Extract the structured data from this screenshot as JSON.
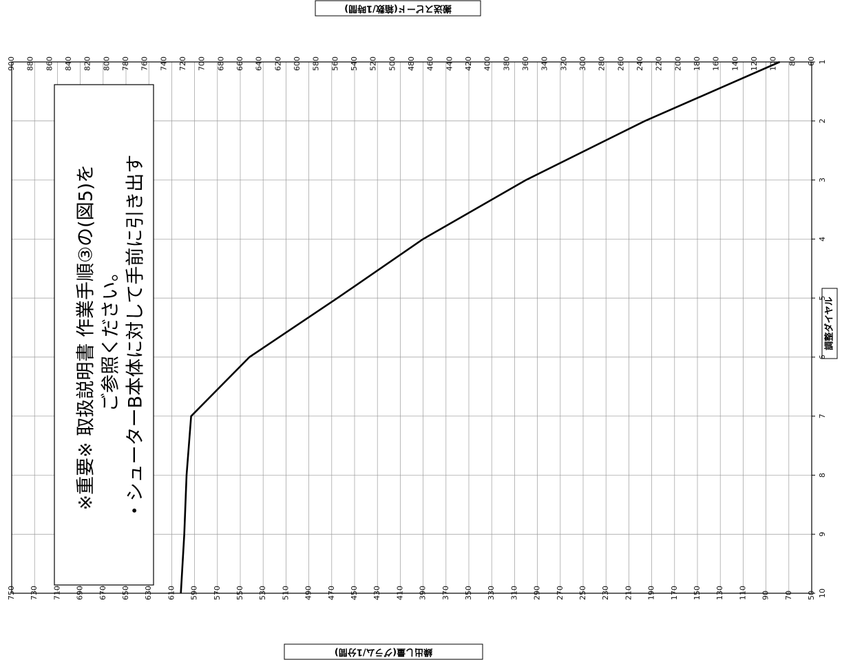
{
  "chart_data": {
    "type": "line",
    "rotation": "rotated 90 degrees clockwise (page is drawn sideways)",
    "x": [
      1,
      2,
      3,
      4,
      5,
      6,
      7,
      8,
      9,
      10
    ],
    "series": [
      {
        "name": "",
        "values": [
          78,
          196,
          300,
          390,
          465,
          542,
          593,
          597,
          599,
          602
        ]
      }
    ],
    "xlabel": "調整ダイヤル",
    "ylabel": "繰出し量(グラム/1分間)",
    "y2label": "搬送スピード(箱数/1時間)",
    "xlim": [
      1,
      10
    ],
    "ylim": [
      50,
      750
    ],
    "y2lim": [
      60,
      900
    ],
    "x_ticks": [
      "1",
      "2",
      "3",
      "4",
      "5",
      "6",
      "7",
      "8",
      "9",
      "10"
    ],
    "y_ticks": [
      "50",
      "70",
      "90",
      "110",
      "130",
      "150",
      "170",
      "190",
      "210",
      "230",
      "250",
      "270",
      "290",
      "310",
      "330",
      "350",
      "370",
      "390",
      "410",
      "430",
      "450",
      "470",
      "490",
      "510",
      "530",
      "550",
      "570",
      "590",
      "610",
      "630",
      "650",
      "670",
      "690",
      "710",
      "730",
      "750"
    ],
    "y2_ticks": [
      "60",
      "80",
      "100",
      "120",
      "140",
      "160",
      "180",
      "200",
      "220",
      "240",
      "260",
      "280",
      "300",
      "320",
      "340",
      "360",
      "380",
      "400",
      "420",
      "440",
      "460",
      "480",
      "500",
      "520",
      "540",
      "560",
      "580",
      "600",
      "620",
      "640",
      "660",
      "680",
      "700",
      "720",
      "740",
      "760",
      "780",
      "800",
      "820",
      "840",
      "860",
      "880",
      "900"
    ],
    "grid": true,
    "line_color": "#000000",
    "annotation": {
      "line1": "※重要※ 取扱説明書 作業手順③の(図5)を",
      "line2": "ご参照ください。",
      "line3": "・シューターB本体に対して手前に引き出す"
    }
  }
}
